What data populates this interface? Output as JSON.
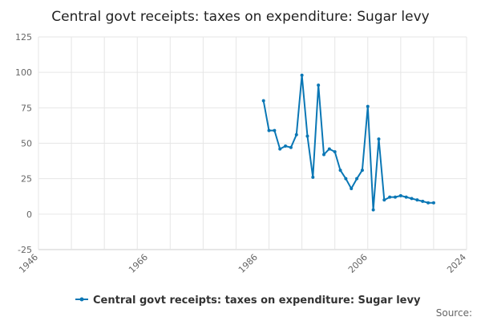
{
  "chart_data": {
    "type": "line",
    "title": "Central govt receipts: taxes on expenditure: Sugar levy",
    "xlabel": "",
    "ylabel": "",
    "xlim": [
      1946,
      2024
    ],
    "ylim": [
      -25,
      125
    ],
    "x_ticks": [
      "1946",
      "1966",
      "1986",
      "2006",
      "2024"
    ],
    "y_ticks": [
      "125",
      "100",
      "75",
      "50",
      "25",
      "0",
      "-25"
    ],
    "grid": true,
    "legend_position": "bottom",
    "series": [
      {
        "name": "Central govt receipts: taxes on expenditure: Sugar levy",
        "color": "#0a77b5",
        "x": [
          1987,
          1988,
          1989,
          1990,
          1991,
          1992,
          1993,
          1994,
          1995,
          1996,
          1997,
          1998,
          1999,
          2000,
          2001,
          2002,
          2003,
          2004,
          2005,
          2006,
          2007,
          2008,
          2009,
          2010,
          2011,
          2012,
          2013,
          2014,
          2015,
          2016,
          2017,
          2018
        ],
        "values": [
          80,
          59,
          59,
          46,
          48,
          47,
          56,
          98,
          55,
          26,
          91,
          42,
          46,
          44,
          31,
          25,
          18,
          25,
          31,
          76,
          3,
          53,
          10,
          12,
          12,
          13,
          12,
          11,
          10,
          9,
          8,
          8
        ]
      }
    ]
  },
  "footer": {
    "source_label": "Source:"
  }
}
